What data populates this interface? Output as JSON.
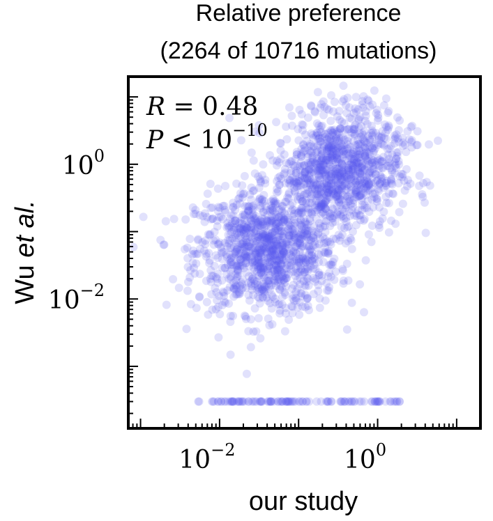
{
  "chart_data": {
    "type": "scatter",
    "title": "Relative preference",
    "subtitle": "(2264 of 10716 mutations)",
    "xlabel": "our study",
    "ylabel": {
      "main": "Wu ",
      "italic": "et al."
    },
    "xscale": "log",
    "yscale": "log",
    "xlim": [
      0.0007,
      20
    ],
    "ylim": [
      0.00012,
      20
    ],
    "x_ticks": [
      {
        "value": 0.01,
        "base": "10",
        "exp": "−2"
      },
      {
        "value": 1,
        "base": "10",
        "exp": "0"
      }
    ],
    "y_ticks": [
      {
        "value": 0.01,
        "base": "10",
        "exp": "−2"
      },
      {
        "value": 1,
        "base": "10",
        "exp": "0"
      }
    ],
    "annotations": {
      "r_text": {
        "var": "R",
        "rest": " = 0.48"
      },
      "p_text": {
        "var": "P",
        "rest": " < 10",
        "exp": "−10"
      }
    },
    "point_color": "#5a5af0",
    "point_opacity": 0.18,
    "n_points_shown": 2264,
    "floor_value_y": 0.0003,
    "points": [],
    "generator": {
      "clusters": [
        {
          "cx": 0.04,
          "cy": 0.05,
          "sx": 0.45,
          "sy": 0.45,
          "n": 1100
        },
        {
          "cx": 0.3,
          "cy": 0.7,
          "sx": 0.4,
          "sy": 0.4,
          "n": 900
        },
        {
          "cx": 0.6,
          "cy": 3.0,
          "sx": 0.35,
          "sy": 0.3,
          "n": 150
        }
      ],
      "floor_x_range": [
        0.005,
        2.0
      ],
      "floor_n": 114
    },
    "grid": false,
    "legend": "none"
  }
}
